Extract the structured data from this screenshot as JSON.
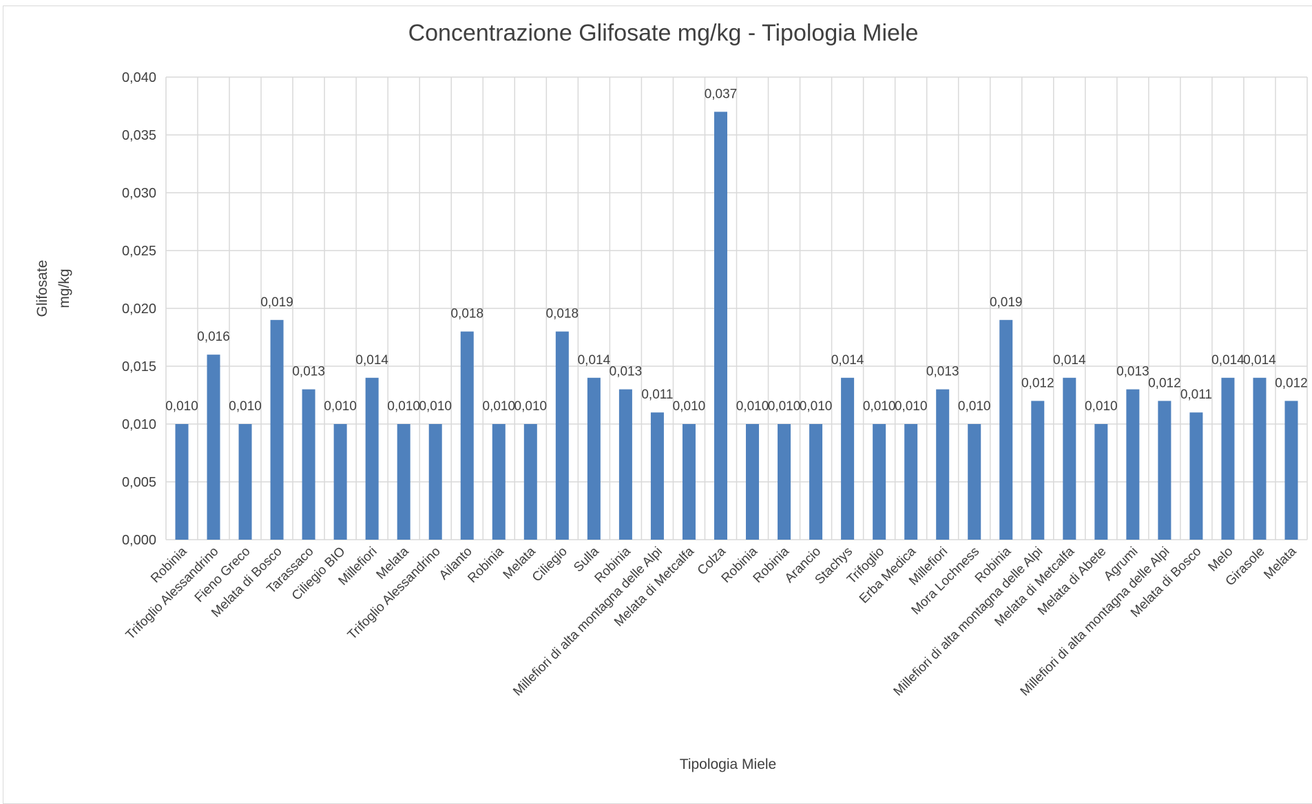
{
  "chart_data": {
    "type": "bar",
    "title": "Concentrazione Glifosate mg/kg - Tipologia Miele",
    "xlabel": "Tipologia Miele",
    "ylabel_lines": [
      "Glifosate",
      "mg/kg"
    ],
    "ylim": [
      0,
      0.04
    ],
    "ytick_values": [
      0,
      0.005,
      0.01,
      0.015,
      0.02,
      0.025,
      0.03,
      0.035,
      0.04
    ],
    "ytick_labels": [
      "0,000",
      "0,005",
      "0,010",
      "0,015",
      "0,020",
      "0,025",
      "0,030",
      "0,035",
      "0,040"
    ],
    "grid": true,
    "legend": "none",
    "bar_color": "#4f81bd",
    "categories": [
      "Robinia",
      "Trifoglio Alessandrino",
      "Fieno Greco",
      "Melata di Bosco",
      "Tarassaco",
      "Ciliegio BIO",
      "Millefiori",
      "Melata",
      "Trifoglio Alessandrino",
      "Ailanto",
      "Robinia",
      "Melata",
      "Ciliegio",
      "Sulla",
      "Robinia",
      "Millefiori di alta montagna delle Alpi",
      "Melata di Metcalfa",
      "Colza",
      "Robinia",
      "Robinia",
      "Arancio",
      "Stachys",
      "Trifoglio",
      "Erba Medica",
      "Millefiori",
      "Mora Lochness",
      "Robinia",
      "Millefiori di alta montagna delle Alpi",
      "Melata di Metcalfa",
      "Melata di Abete",
      "Agrumi",
      "Millefiori di alta montagna delle Alpi",
      "Melata di Bosco",
      "Melo",
      "Girasole",
      "Melata"
    ],
    "values": [
      0.01,
      0.016,
      0.01,
      0.019,
      0.013,
      0.01,
      0.014,
      0.01,
      0.01,
      0.018,
      0.01,
      0.01,
      0.018,
      0.014,
      0.013,
      0.011,
      0.01,
      0.037,
      0.01,
      0.01,
      0.01,
      0.014,
      0.01,
      0.01,
      0.013,
      0.01,
      0.019,
      0.012,
      0.014,
      0.01,
      0.013,
      0.012,
      0.011,
      0.014,
      0.014,
      0.012
    ],
    "data_labels": [
      "0,010",
      "0,016",
      "0,010",
      "0,019",
      "0,013",
      "0,010",
      "0,014",
      "0,010",
      "0,010",
      "0,018",
      "0,010",
      "0,010",
      "0,018",
      "0,014",
      "0,013",
      "0,011",
      "0,010",
      "0,037",
      "0,010",
      "0,010",
      "0,010",
      "0,014",
      "0,010",
      "0,010",
      "0,013",
      "0,010",
      "0,019",
      "0,012",
      "0,014",
      "0,010",
      "0,013",
      "0,012",
      "0,011",
      "0,014",
      "0,014",
      "0,012"
    ]
  }
}
